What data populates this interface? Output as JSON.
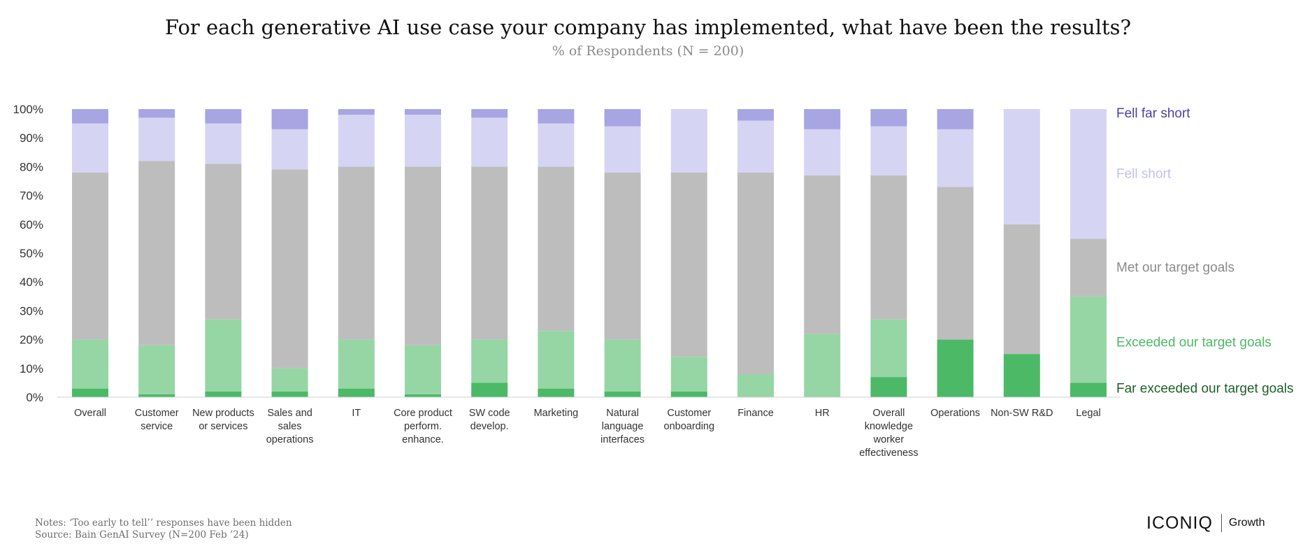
{
  "title": "For each generative AI use case your company has implemented, what have been the results?",
  "subtitle": "% of Respondents (N = 200)",
  "notes": "Notes: ‘Too early to tell’’ responses have been hidden",
  "source": "Source: Bain GenAI Survey (N=200 Feb ’24)",
  "logo": {
    "main": "ICONIQ",
    "sub": "Growth"
  },
  "colors": {
    "fell_far_short": "#a8a5e3",
    "fell_short": "#d5d4f3",
    "met": "#bdbdbd",
    "exceeded": "#95d6a4",
    "far_exceeded": "#4cb967",
    "axis_text": "#333333",
    "legend_fell_far_short": "#4a3fa8",
    "legend_fell_short": "#c2c0ee",
    "legend_met": "#8a8a8a",
    "legend_exceeded": "#4cb967",
    "legend_far_exceeded": "#1e5e2c"
  },
  "chart_data": {
    "type": "bar",
    "stacked": true,
    "ylim": [
      0,
      100
    ],
    "yticks": [
      "0%",
      "10%",
      "20%",
      "30%",
      "40%",
      "50%",
      "60%",
      "70%",
      "80%",
      "90%",
      "100%"
    ],
    "grid": false,
    "legend_position": "right",
    "categories": [
      [
        "Overall"
      ],
      [
        "Customer",
        "service"
      ],
      [
        "New products",
        "or services"
      ],
      [
        "Sales and",
        "sales",
        "operations"
      ],
      [
        "IT"
      ],
      [
        "Core product",
        "perform.",
        "enhance."
      ],
      [
        "SW code",
        "develop."
      ],
      [
        "Marketing"
      ],
      [
        "Natural",
        "language",
        "interfaces"
      ],
      [
        "Customer",
        "onboarding"
      ],
      [
        "Finance"
      ],
      [
        "HR"
      ],
      [
        "Overall",
        "knowledge",
        "worker",
        "effectiveness"
      ],
      [
        "Operations"
      ],
      [
        "Non-SW R&D"
      ],
      [
        "Legal"
      ]
    ],
    "series": [
      {
        "name": "Far exceeded our target goals",
        "key": "far_exceeded",
        "values": [
          3,
          1,
          2,
          2,
          3,
          1,
          5,
          3,
          2,
          2,
          0,
          0,
          7,
          20,
          15,
          5
        ]
      },
      {
        "name": "Exceeded our target goals",
        "key": "exceeded",
        "values": [
          17,
          17,
          25,
          8,
          17,
          17,
          15,
          20,
          18,
          12,
          8,
          22,
          20,
          0,
          0,
          30
        ]
      },
      {
        "name": "Met our target goals",
        "key": "met",
        "values": [
          58,
          64,
          54,
          69,
          60,
          62,
          60,
          57,
          58,
          64,
          70,
          55,
          50,
          53,
          45,
          20
        ]
      },
      {
        "name": "Fell short",
        "key": "fell_short",
        "values": [
          17,
          15,
          14,
          14,
          18,
          18,
          17,
          15,
          16,
          22,
          18,
          16,
          17,
          20,
          40,
          45
        ]
      },
      {
        "name": "Fell far short",
        "key": "fell_far_short",
        "values": [
          5,
          3,
          5,
          7,
          2,
          2,
          3,
          5,
          6,
          0,
          4,
          7,
          6,
          7,
          0,
          0
        ]
      }
    ]
  }
}
